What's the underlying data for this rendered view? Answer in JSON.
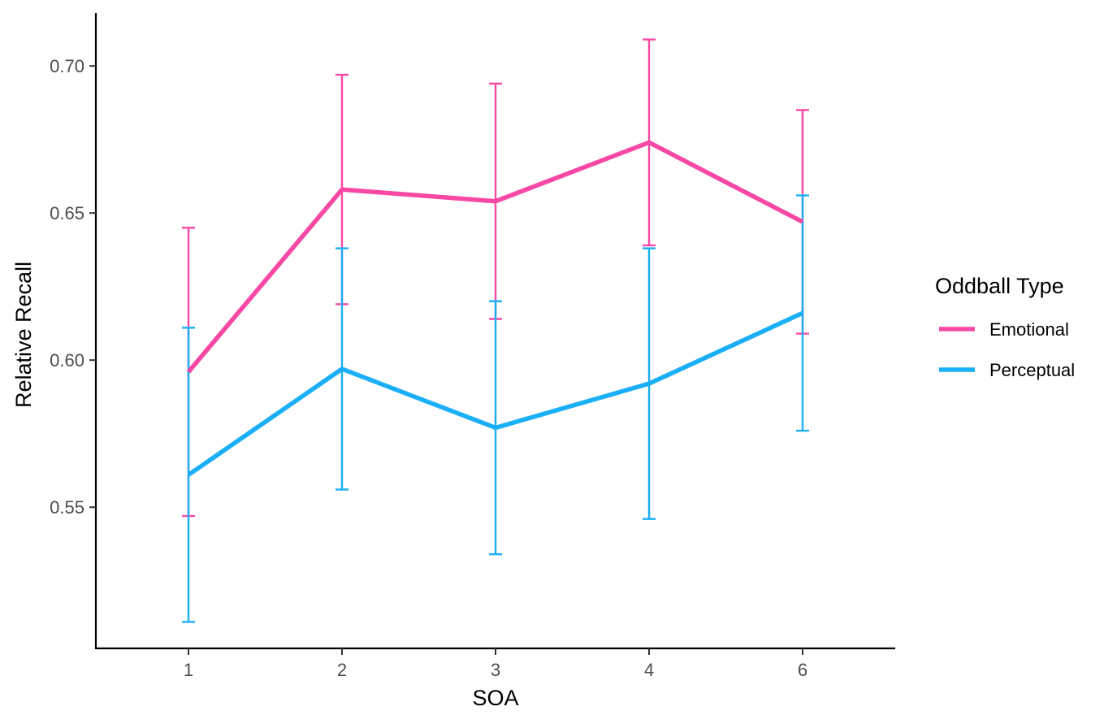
{
  "chart_data": {
    "type": "line",
    "title": "",
    "xlabel": "SOA",
    "ylabel": "Relative Recall",
    "categories": [
      "1",
      "2",
      "3",
      "4",
      "6"
    ],
    "ylim": [
      0.502,
      0.718
    ],
    "yticks": [
      0.55,
      0.6,
      0.65,
      0.7
    ],
    "ytick_labels": [
      "0.55",
      "0.60",
      "0.65",
      "0.70"
    ],
    "grid": false,
    "legend": {
      "title": "Oddball Type",
      "position": "right"
    },
    "series": [
      {
        "name": "Emotional",
        "color": "#F748A5",
        "values": [
          0.596,
          0.658,
          0.654,
          0.674,
          0.647
        ],
        "lower": [
          0.547,
          0.619,
          0.614,
          0.639,
          0.609
        ],
        "upper": [
          0.645,
          0.697,
          0.694,
          0.709,
          0.685
        ]
      },
      {
        "name": "Perceptual",
        "color": "#1AAFF6",
        "values": [
          0.561,
          0.597,
          0.577,
          0.592,
          0.616
        ],
        "lower": [
          0.511,
          0.556,
          0.534,
          0.546,
          0.576
        ],
        "upper": [
          0.611,
          0.638,
          0.62,
          0.638,
          0.656
        ]
      }
    ]
  }
}
